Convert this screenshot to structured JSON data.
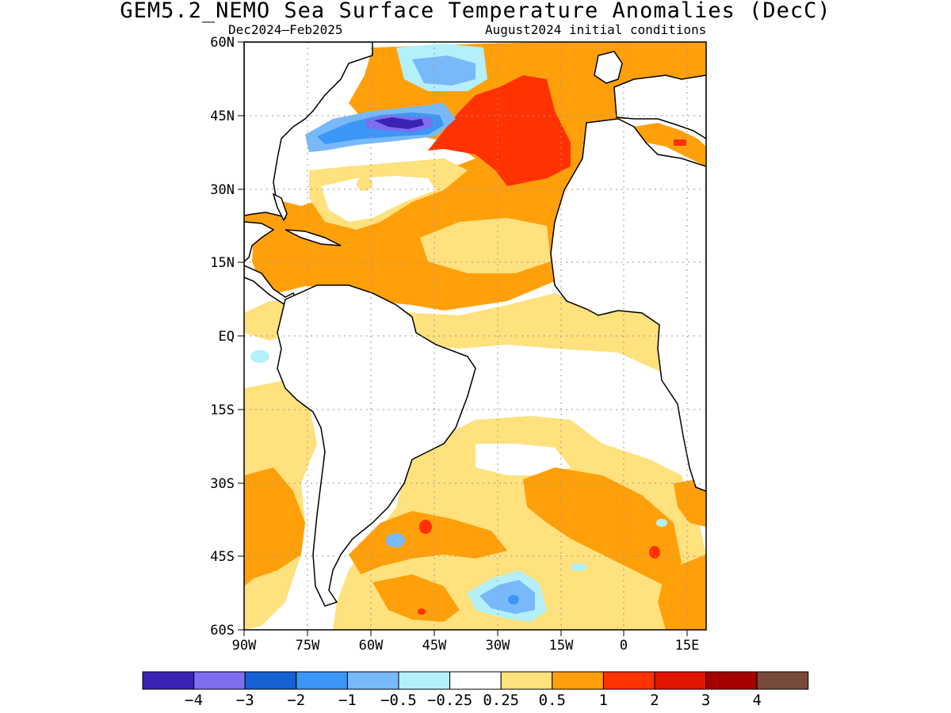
{
  "title": "GEM5.2_NEMO Sea Surface Temperature Anomalies (DecC)",
  "subtitle_left": "Dec2024–Feb2025",
  "subtitle_right": "August2024 initial conditions",
  "map": {
    "lon_range": [
      -90,
      19
    ],
    "lat_range": [
      -60,
      60
    ],
    "lon_ticks": [
      {
        "value": -90,
        "label": "90W"
      },
      {
        "value": -75,
        "label": "75W"
      },
      {
        "value": -60,
        "label": "60W"
      },
      {
        "value": -45,
        "label": "45W"
      },
      {
        "value": -30,
        "label": "30W"
      },
      {
        "value": -15,
        "label": "15W"
      },
      {
        "value": 0,
        "label": "0"
      },
      {
        "value": 15,
        "label": "15E"
      }
    ],
    "lat_ticks": [
      {
        "value": 60,
        "label": "60N"
      },
      {
        "value": 45,
        "label": "45N"
      },
      {
        "value": 30,
        "label": "30N"
      },
      {
        "value": 15,
        "label": "15N"
      },
      {
        "value": 0,
        "label": "EQ"
      },
      {
        "value": -15,
        "label": "15S"
      },
      {
        "value": -30,
        "label": "30S"
      },
      {
        "value": -45,
        "label": "45S"
      },
      {
        "value": -60,
        "label": "60S"
      }
    ],
    "grid": true
  },
  "colorbar": {
    "colors": [
      "#3b22b4",
      "#7d6ef0",
      "#1560d2",
      "#3c96f5",
      "#78b9fa",
      "#b4f0fa",
      "#ffffff",
      "#ffe17d",
      "#ffa00a",
      "#ff3200",
      "#e11400",
      "#a50000",
      "#784a3c"
    ],
    "labels": [
      "−4",
      "−3",
      "−2",
      "−1",
      "−0.5",
      "−0.25",
      "0.25",
      "0.5",
      "1",
      "2",
      "3",
      "4"
    ]
  }
}
